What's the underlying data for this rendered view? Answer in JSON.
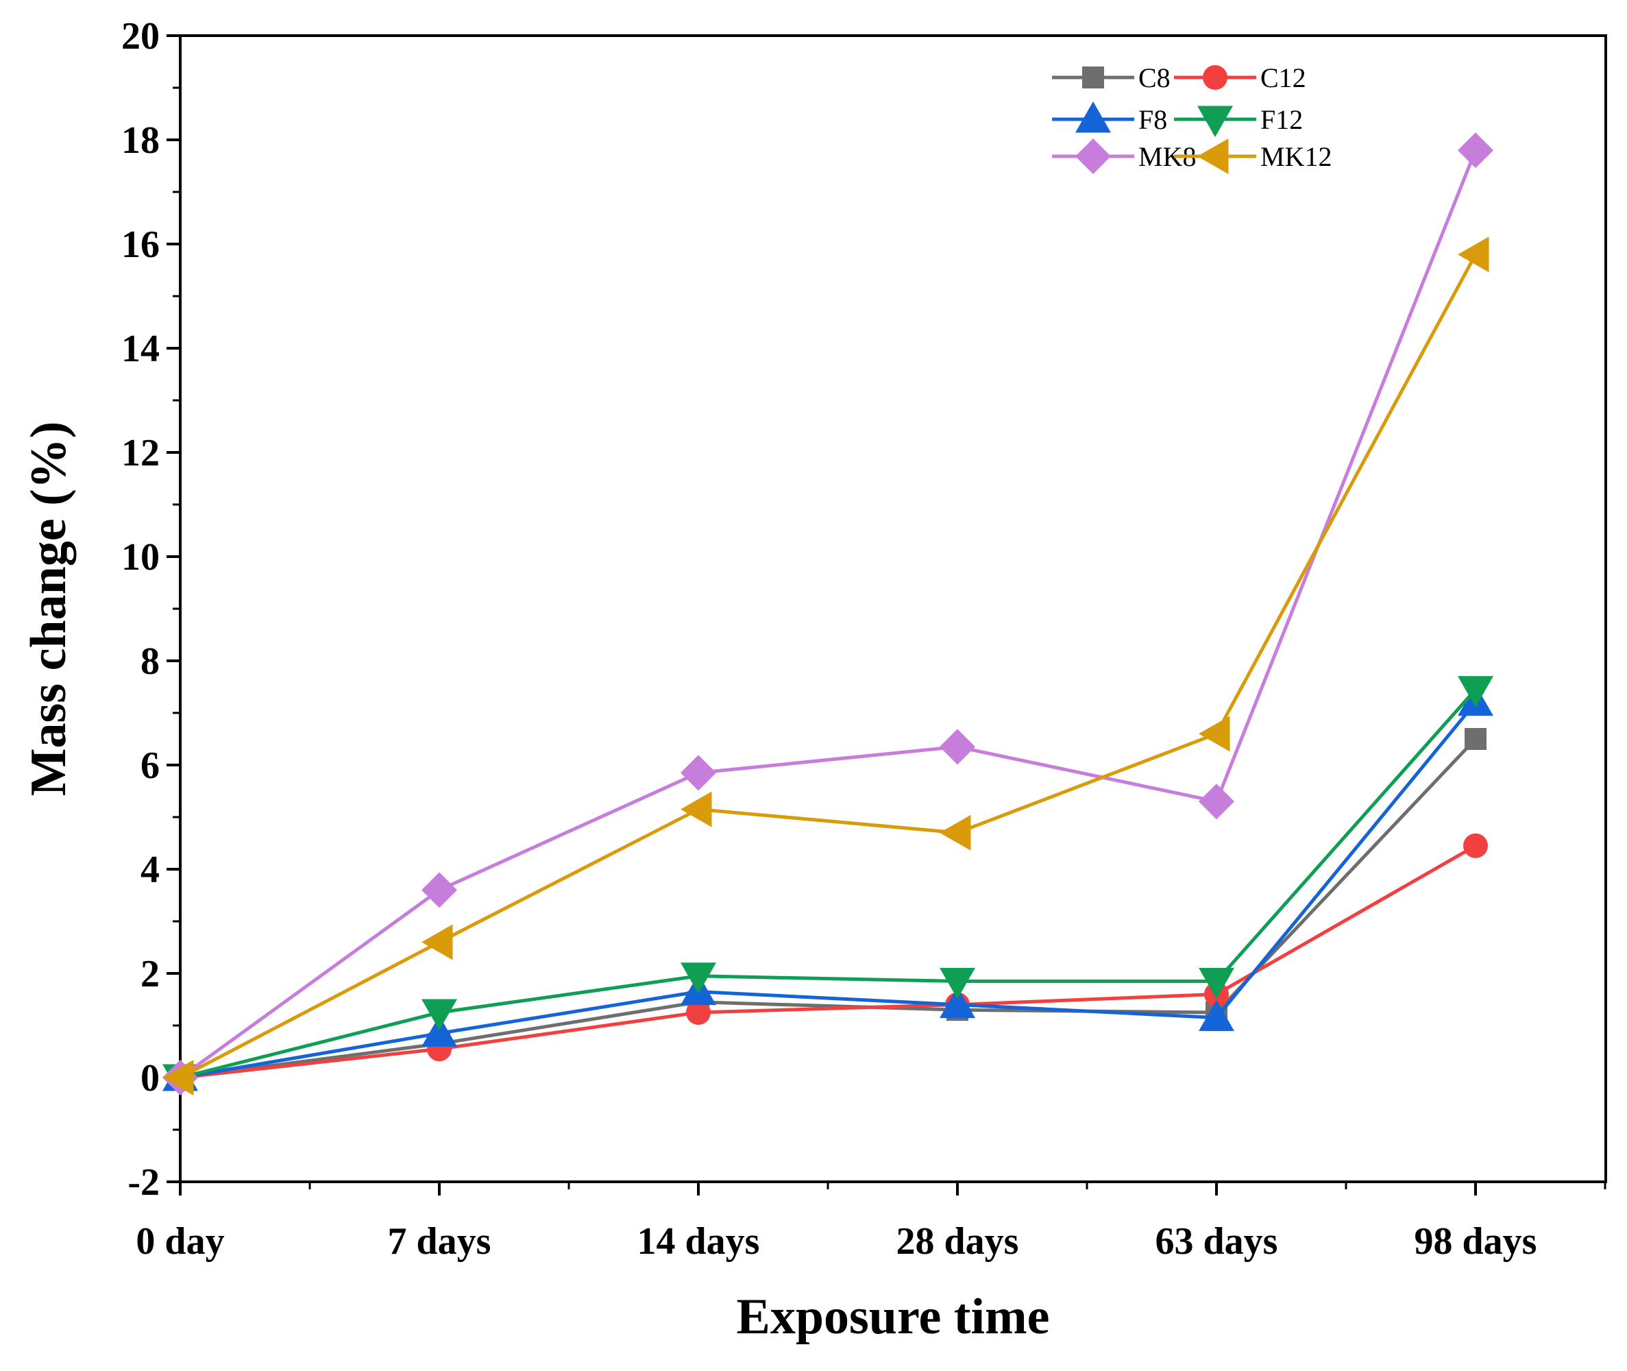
{
  "chart_data": {
    "type": "line",
    "title": "",
    "xlabel": "Exposure time",
    "ylabel": "Mass change (%)",
    "categories": [
      "0 day",
      "7 days",
      "14 days",
      "28 days",
      "63 days",
      "98 days"
    ],
    "ylim": [
      -2,
      20
    ],
    "yticks": [
      "-2",
      "0",
      "2",
      "4",
      "6",
      "8",
      "10",
      "12",
      "14",
      "16",
      "18",
      "20"
    ],
    "grid": false,
    "legend_position": "top-right",
    "series": [
      {
        "name": "C8",
        "color": "#6e6e6e",
        "marker": "square",
        "values": [
          0,
          0.65,
          1.45,
          1.3,
          1.25,
          6.5
        ]
      },
      {
        "name": "C12",
        "color": "#f23f3f",
        "marker": "circle",
        "values": [
          0,
          0.55,
          1.25,
          1.4,
          1.6,
          4.45
        ]
      },
      {
        "name": "F8",
        "color": "#1464d8",
        "marker": "triangle-up",
        "values": [
          0,
          0.85,
          1.65,
          1.4,
          1.15,
          7.2
        ]
      },
      {
        "name": "F12",
        "color": "#109e55",
        "marker": "triangle-down",
        "values": [
          0,
          1.25,
          1.95,
          1.85,
          1.85,
          7.45
        ]
      },
      {
        "name": "MK8",
        "color": "#c77ddc",
        "marker": "diamond",
        "values": [
          0,
          3.6,
          5.85,
          6.35,
          5.3,
          17.8
        ]
      },
      {
        "name": "MK12",
        "color": "#d99b09",
        "marker": "triangle-left",
        "values": [
          0,
          2.6,
          5.15,
          4.7,
          6.6,
          15.8
        ]
      }
    ]
  }
}
